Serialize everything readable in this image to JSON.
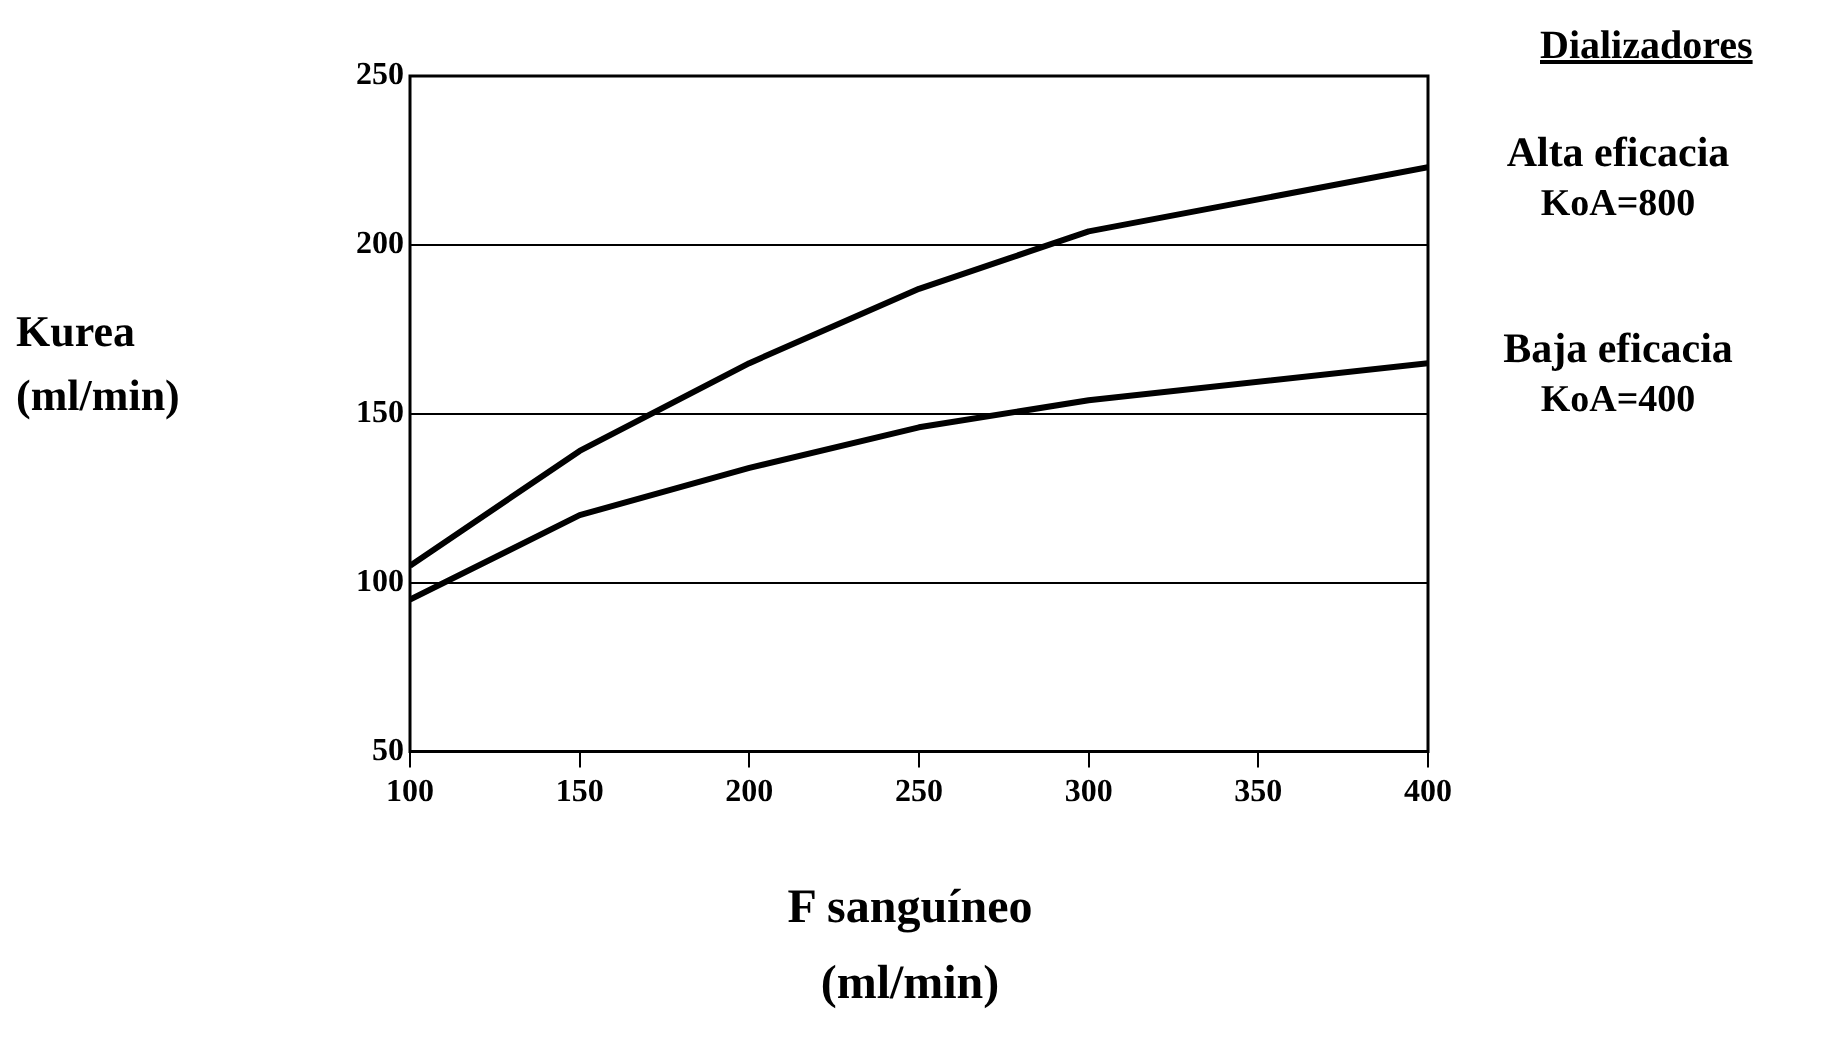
{
  "chart_data": {
    "type": "line",
    "xlabel": "F sanguíneo (ml/min)",
    "ylabel": "Kurea (ml/min)",
    "legend_title": "Dializadores",
    "x": [
      100,
      150,
      200,
      250,
      300,
      400
    ],
    "series": [
      {
        "name": "Alta eficacia KoA=800",
        "color": "#000000",
        "values": [
          105,
          139,
          165,
          187,
          204,
          223
        ]
      },
      {
        "name": "Baja eficacia KoA=400",
        "color": "#000000",
        "values": [
          95,
          120,
          134,
          146,
          154,
          165
        ]
      }
    ],
    "xlim": [
      100,
      400
    ],
    "xticks": [
      100,
      150,
      200,
      250,
      300,
      350,
      400
    ],
    "ylim": [
      50,
      250
    ],
    "yticks": [
      50,
      100,
      150,
      200,
      250
    ],
    "grid": "y",
    "marker": "none",
    "line_style": "solid"
  }
}
